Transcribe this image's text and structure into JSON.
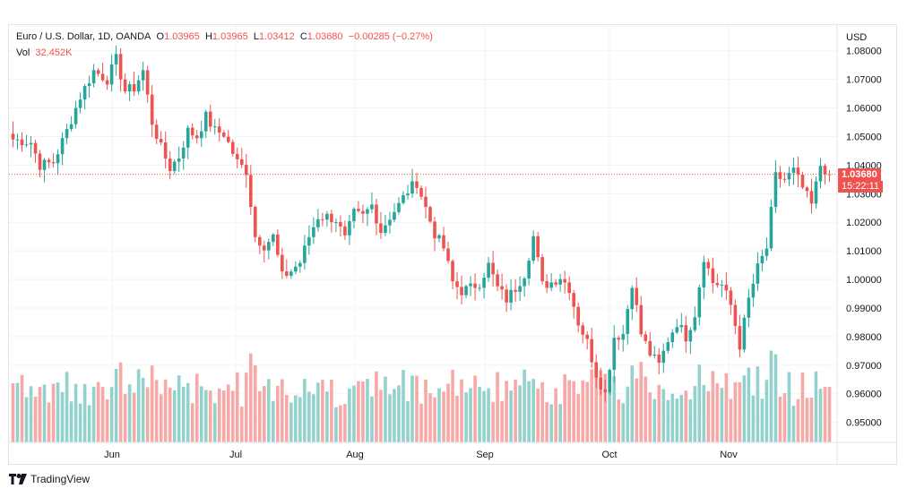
{
  "header": {
    "symbol": "Euro / U.S. Dollar, 1D, OANDA",
    "open_label": "O",
    "open": "1.03965",
    "high_label": "H",
    "high": "1.03965",
    "low_label": "L",
    "low": "1.03412",
    "close_label": "C",
    "close": "1.03680",
    "change": "−0.00285 (−0.27%)",
    "vol_label": "Vol",
    "vol": "32.452K"
  },
  "price_axis": {
    "currency": "USD",
    "ticks": [
      "1.08000",
      "1.07000",
      "1.06000",
      "1.05000",
      "1.04000",
      "1.03000",
      "1.02000",
      "1.01000",
      "1.00000",
      "0.99000",
      "0.98000",
      "0.97000",
      "0.96000",
      "0.95000"
    ]
  },
  "last_price": {
    "value": "1.03680",
    "timer": "15:22:11"
  },
  "colors": {
    "up": "#26a69a",
    "down": "#ef5350",
    "up_vol": "#93d2cc",
    "down_vol": "#f7a9a7",
    "grid": "#f0f3fa"
  },
  "time_axis": {
    "labels": [
      "Jun",
      "Jul",
      "Aug",
      "Sep",
      "Oct",
      "Nov"
    ]
  },
  "branding": {
    "name": "TradingView"
  },
  "chart_data": {
    "type": "candlestick",
    "title": "Euro / U.S. Dollar, 1D, OANDA",
    "ylabel": "USD",
    "ylim": [
      0.943,
      1.089
    ],
    "grid": true,
    "x_labels": [
      "Jun",
      "Jul",
      "Aug",
      "Sep",
      "Oct",
      "Nov"
    ],
    "anchors": [
      [
        0,
        1.049
      ],
      [
        4,
        1.048
      ],
      [
        6,
        1.04
      ],
      [
        9,
        1.041
      ],
      [
        12,
        1.052
      ],
      [
        15,
        1.064
      ],
      [
        18,
        1.073
      ],
      [
        21,
        1.07
      ],
      [
        23,
        1.077
      ],
      [
        25,
        1.066
      ],
      [
        27,
        1.067
      ],
      [
        29,
        1.073
      ],
      [
        31,
        1.055
      ],
      [
        33,
        1.046
      ],
      [
        35,
        1.039
      ],
      [
        37,
        1.043
      ],
      [
        39,
        1.052
      ],
      [
        41,
        1.05
      ],
      [
        43,
        1.057
      ],
      [
        45,
        1.052
      ],
      [
        47,
        1.051
      ],
      [
        50,
        1.041
      ],
      [
        52,
        1.038
      ],
      [
        54,
        1.015
      ],
      [
        56,
        1.012
      ],
      [
        58,
        1.015
      ],
      [
        60,
        1.001
      ],
      [
        62,
        1.003
      ],
      [
        64,
        1.006
      ],
      [
        66,
        1.015
      ],
      [
        68,
        1.022
      ],
      [
        70,
        1.022
      ],
      [
        72,
        1.021
      ],
      [
        74,
        1.014
      ],
      [
        76,
        1.023
      ],
      [
        78,
        1.022
      ],
      [
        80,
        1.026
      ],
      [
        82,
        1.017
      ],
      [
        84,
        1.022
      ],
      [
        86,
        1.026
      ],
      [
        88,
        1.031
      ],
      [
        90,
        1.034
      ],
      [
        92,
        1.025
      ],
      [
        94,
        1.016
      ],
      [
        96,
        1.011
      ],
      [
        98,
        0.999
      ],
      [
        100,
        0.996
      ],
      [
        102,
        0.997
      ],
      [
        104,
        0.999
      ],
      [
        106,
        1.005
      ],
      [
        108,
        0.997
      ],
      [
        110,
        0.993
      ],
      [
        112,
        0.997
      ],
      [
        114,
        1.002
      ],
      [
        116,
        1.015
      ],
      [
        118,
        0.998
      ],
      [
        120,
        0.999
      ],
      [
        122,
        1.001
      ],
      [
        124,
        0.997
      ],
      [
        126,
        0.985
      ],
      [
        128,
        0.978
      ],
      [
        130,
        0.967
      ],
      [
        132,
        0.96
      ],
      [
        134,
        0.98
      ],
      [
        136,
        0.981
      ],
      [
        138,
        0.999
      ],
      [
        140,
        0.981
      ],
      [
        142,
        0.974
      ],
      [
        144,
        0.97
      ],
      [
        146,
        0.979
      ],
      [
        148,
        0.985
      ],
      [
        150,
        0.98
      ],
      [
        152,
        0.988
      ],
      [
        154,
        1.008
      ],
      [
        156,
        0.999
      ],
      [
        158,
        0.998
      ],
      [
        160,
        0.991
      ],
      [
        162,
        0.977
      ],
      [
        164,
        0.993
      ],
      [
        166,
        1.004
      ],
      [
        168,
        1.011
      ],
      [
        170,
        1.036
      ],
      [
        172,
        1.035
      ],
      [
        174,
        1.038
      ],
      [
        176,
        1.032
      ],
      [
        178,
        1.026
      ],
      [
        180,
        1.04
      ],
      [
        182,
        1.037
      ]
    ],
    "volume_range": [
      0,
      100
    ],
    "last_close": 1.0368
  }
}
